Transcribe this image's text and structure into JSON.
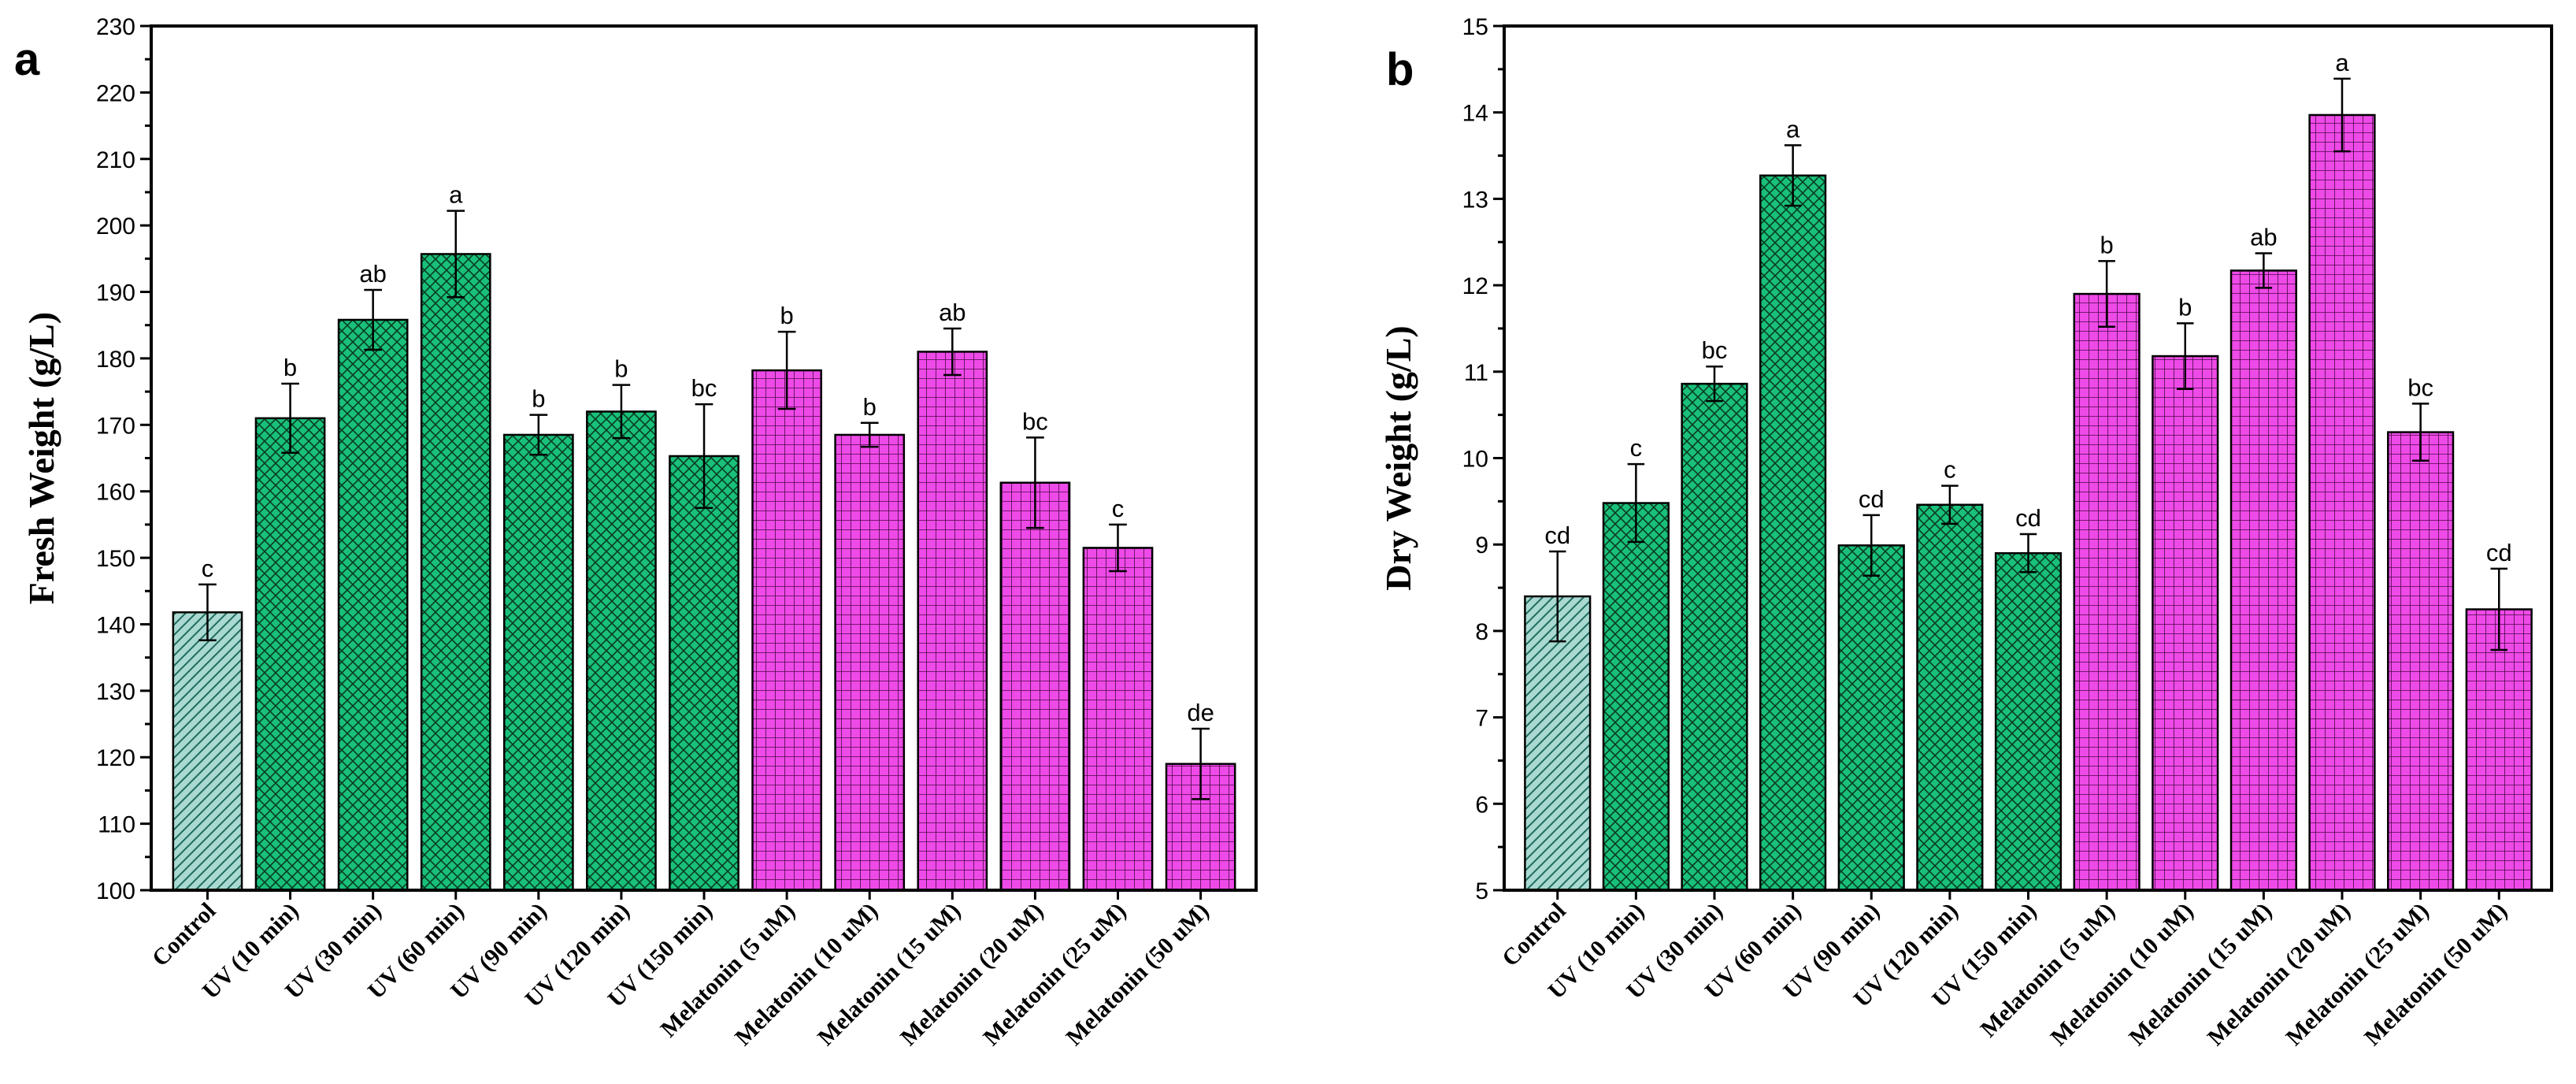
{
  "chart_data": [
    {
      "panel": "a",
      "type": "bar",
      "ylabel": "Fresh Weight (g/L)",
      "ylim": [
        100,
        230
      ],
      "ytick_step": 10,
      "categories": [
        "Control",
        "UV (10 min)",
        "UV (30 min)",
        "UV (60 min)",
        "UV (90 min)",
        "UV (120 min)",
        "UV (150 min)",
        "Melatonin (5 uM)",
        "Melatonin (10 uM)",
        "Melatonin (15 uM)",
        "Melatonin (20 uM)",
        "Melatonin (25 uM)",
        "Melatonin (50 uM)"
      ],
      "values": [
        141.8,
        171,
        185.8,
        195.7,
        168.5,
        172,
        165.3,
        178.2,
        168.5,
        181,
        161.3,
        151.5,
        119
      ],
      "errors": [
        4.2,
        5.2,
        4.5,
        6.5,
        3,
        4,
        7.8,
        5.8,
        1.8,
        3.5,
        6.8,
        3.5,
        5.3
      ],
      "letters": [
        "c",
        "b",
        "ab",
        "a",
        "b",
        "b",
        "bc",
        "b",
        "b",
        "ab",
        "bc",
        "c",
        "de"
      ],
      "groups": [
        "control",
        "uv",
        "uv",
        "uv",
        "uv",
        "uv",
        "uv",
        "melatonin",
        "melatonin",
        "melatonin",
        "melatonin",
        "melatonin",
        "melatonin"
      ]
    },
    {
      "panel": "b",
      "type": "bar",
      "ylabel": "Dry Weight (g/L)",
      "ylim": [
        5,
        15
      ],
      "ytick_step": 1,
      "categories": [
        "Control",
        "UV (10 min)",
        "UV (30 min)",
        "UV (60 min)",
        "UV (90 min)",
        "UV (120 min)",
        "UV (150 min)",
        "Melatonin (5 uM)",
        "Melatonin (10 uM)",
        "Melatonin (15 uM)",
        "Melatonin (20 uM)",
        "Melatonin (25 uM)",
        "Melatonin (50 uM)"
      ],
      "values": [
        8.4,
        9.48,
        10.86,
        13.27,
        8.99,
        9.46,
        8.9,
        11.9,
        11.18,
        12.17,
        13.97,
        10.3,
        8.25
      ],
      "errors": [
        0.52,
        0.45,
        0.2,
        0.35,
        0.35,
        0.22,
        0.22,
        0.38,
        0.38,
        0.2,
        0.42,
        0.33,
        0.47
      ],
      "letters": [
        "cd",
        "c",
        "bc",
        "a",
        "cd",
        "c",
        "cd",
        "b",
        "b",
        "ab",
        "a",
        "bc",
        "cd"
      ],
      "groups": [
        "control",
        "uv",
        "uv",
        "uv",
        "uv",
        "uv",
        "uv",
        "melatonin",
        "melatonin",
        "melatonin",
        "melatonin",
        "melatonin",
        "melatonin"
      ]
    }
  ],
  "colors": {
    "control": "#a9d9d0",
    "uv": "#19c07a",
    "melatonin": "#ee4ae8"
  }
}
